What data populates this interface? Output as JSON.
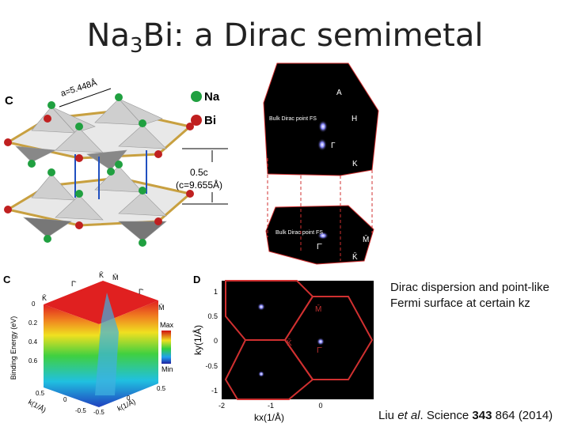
{
  "title": {
    "parts": [
      "Na",
      "3",
      "Bi: a Dirac semimetal"
    ]
  },
  "caption": "Dirac dispersion and point-like Fermi surface at certain kz",
  "citation": {
    "parts": [
      "Liu ",
      "et al",
      ". Science ",
      "343",
      " 864 (2014)"
    ]
  },
  "figures": {
    "crystal": {
      "panel": "C",
      "lattice": "a=5.448Å",
      "legend": [
        "Na",
        "Bi"
      ],
      "spacing": "0.5c",
      "c_value": "(c=9.655Å)"
    },
    "brillouin": {
      "top_labels": [
        "A",
        "H",
        "Bulk Dirac point FS",
        "Γ",
        "K"
      ],
      "bottom_labels": [
        "Bulk Dirac point FS",
        "Γ̄",
        "M̄",
        "K̄"
      ]
    },
    "dispersion": {
      "panel": "C",
      "ylabel": "Binding Energy (eV)",
      "yticks": [
        "0",
        "0.2",
        "0.4",
        "0.6"
      ],
      "top_labels": [
        "Γ̄",
        "K̄",
        "M̄",
        "Γ̄",
        "K̄",
        "M̄"
      ],
      "colorbar": [
        "Max",
        "Min"
      ],
      "xlabels": [
        "k(1/Å)",
        "k(1/Å)"
      ],
      "xticks": [
        "0.5",
        "0",
        "-0.5",
        "-0.5",
        "0",
        "0.5"
      ]
    },
    "fermi": {
      "panel": "D",
      "ylabel": "ky(1/Å)",
      "xlabel": "kx(1/Å)",
      "yticks": [
        "1",
        "0.5",
        "0",
        "-0.5",
        "-1"
      ],
      "xticks": [
        "-2",
        "-1",
        "0"
      ],
      "points": [
        "M̄",
        "K̄",
        "Γ̄"
      ]
    }
  }
}
